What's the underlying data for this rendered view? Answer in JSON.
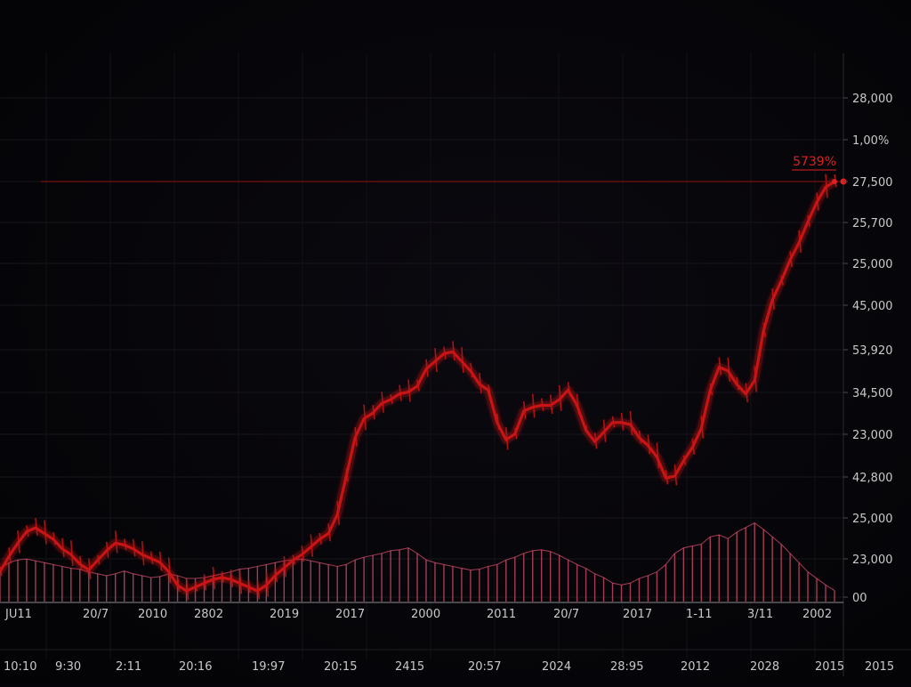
{
  "colors": {
    "background": "#050408",
    "line": "#c81414",
    "volume": "#d8506e",
    "label": "#c9c9c9",
    "marker": "#e02020"
  },
  "chart_data": {
    "type": "line",
    "title": "",
    "y_tick_labels": [
      "28,000",
      "1,00%",
      "27,500",
      "25,700",
      "25,000",
      "45,000",
      "53,920",
      "34,500",
      "23,000",
      "42,800",
      "25,000",
      "23,000",
      "00"
    ],
    "x_tick_labels_top": [
      "JU11",
      "20/7",
      "2010",
      "2802",
      "2019",
      "2017",
      "2000",
      "2011",
      "20/7",
      "2017",
      "1-11",
      "3/11",
      "2002"
    ],
    "x_tick_labels_bottom": [
      "10:10",
      "9:30",
      "2:11",
      "20:16",
      "19:97",
      "20:15",
      "2415",
      "20:57",
      "2024",
      "28:95",
      "2012",
      "2028",
      "2015",
      "2015"
    ],
    "last_value_label": "5739%",
    "price_series": {
      "name": "",
      "x": [
        0,
        10,
        20,
        30,
        40,
        50,
        60,
        70,
        80,
        90,
        100,
        110,
        120,
        130,
        140,
        150,
        160,
        170,
        180,
        190,
        200,
        210,
        220,
        230,
        240,
        250,
        260,
        270,
        280,
        290,
        300,
        310,
        320,
        330,
        340,
        350,
        360,
        370,
        380,
        390,
        400,
        410,
        420,
        430,
        440,
        450,
        460,
        470,
        480,
        490,
        500,
        510,
        520,
        530,
        540,
        550,
        560,
        570,
        580,
        590,
        600,
        610,
        620,
        630,
        640,
        650,
        660,
        670,
        680,
        690,
        700,
        710,
        720,
        730,
        740,
        750,
        760,
        770,
        780,
        790,
        800,
        810,
        820,
        830,
        840,
        850,
        860,
        870,
        880,
        890,
        900,
        910,
        920,
        930,
        940
      ],
      "y": [
        25000,
        25800,
        26500,
        27100,
        27300,
        27000,
        26700,
        26200,
        25900,
        25400,
        25100,
        25600,
        26100,
        26500,
        26400,
        26200,
        25900,
        25700,
        25500,
        25000,
        24300,
        24000,
        24200,
        24400,
        24600,
        24700,
        24600,
        24400,
        24200,
        24000,
        24300,
        24800,
        25200,
        25600,
        25900,
        26300,
        26700,
        27000,
        28000,
        30000,
        32000,
        33000,
        33300,
        33800,
        34000,
        34300,
        34400,
        34700,
        35600,
        36000,
        36400,
        36500,
        36000,
        35500,
        34800,
        34500,
        32800,
        31900,
        32200,
        33400,
        33600,
        33700,
        33700,
        34000,
        34500,
        33700,
        32400,
        31800,
        32300,
        32800,
        32800,
        32700,
        32000,
        31600,
        31000,
        29900,
        30000,
        30800,
        31500,
        32500,
        34500,
        35700,
        35500,
        34800,
        34300,
        35000,
        37600,
        39200,
        40200,
        41300,
        42200,
        43300,
        44300,
        45100,
        45400
      ]
    },
    "volume_series": {
      "name": "",
      "x": [
        0,
        10,
        20,
        30,
        40,
        50,
        60,
        70,
        80,
        90,
        100,
        110,
        120,
        130,
        140,
        150,
        160,
        170,
        180,
        190,
        200,
        210,
        220,
        230,
        240,
        250,
        260,
        270,
        280,
        290,
        300,
        310,
        320,
        330,
        340,
        350,
        360,
        370,
        380,
        390,
        400,
        410,
        420,
        430,
        440,
        450,
        460,
        470,
        480,
        490,
        500,
        510,
        520,
        530,
        540,
        550,
        560,
        570,
        580,
        590,
        600,
        610,
        620,
        630,
        640,
        650,
        660,
        670,
        680,
        690,
        700,
        710,
        720,
        730,
        740,
        750,
        760,
        770,
        780,
        790,
        800,
        810,
        820,
        830,
        840,
        850,
        860,
        870,
        880,
        890,
        900,
        910,
        920,
        930,
        940
      ],
      "y": [
        0.35,
        0.42,
        0.45,
        0.46,
        0.44,
        0.42,
        0.4,
        0.38,
        0.36,
        0.35,
        0.32,
        0.3,
        0.28,
        0.3,
        0.33,
        0.3,
        0.28,
        0.26,
        0.27,
        0.3,
        0.28,
        0.25,
        0.25,
        0.26,
        0.28,
        0.3,
        0.32,
        0.35,
        0.36,
        0.38,
        0.4,
        0.42,
        0.44,
        0.45,
        0.46,
        0.44,
        0.42,
        0.4,
        0.38,
        0.4,
        0.45,
        0.48,
        0.5,
        0.52,
        0.55,
        0.56,
        0.58,
        0.52,
        0.45,
        0.42,
        0.4,
        0.38,
        0.36,
        0.34,
        0.35,
        0.38,
        0.4,
        0.45,
        0.48,
        0.52,
        0.55,
        0.56,
        0.54,
        0.5,
        0.45,
        0.4,
        0.36,
        0.3,
        0.26,
        0.2,
        0.18,
        0.2,
        0.25,
        0.28,
        0.32,
        0.4,
        0.52,
        0.58,
        0.6,
        0.62,
        0.7,
        0.72,
        0.68,
        0.75,
        0.8,
        0.85,
        0.78,
        0.7,
        0.62,
        0.52,
        0.42,
        0.32,
        0.25,
        0.18,
        0.12
      ]
    },
    "reference_line": {
      "y": 45400
    },
    "xlim": [
      0,
      940
    ],
    "grid": true,
    "legend": "none"
  }
}
